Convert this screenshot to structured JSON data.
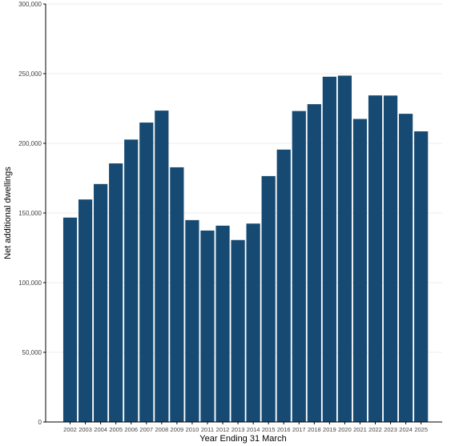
{
  "chart_data": {
    "type": "bar",
    "title": "",
    "xlabel": "Year Ending 31 March",
    "ylabel": "Net additional dwellings",
    "ylim": [
      0,
      300000
    ],
    "yticks": [
      0,
      50000,
      100000,
      150000,
      200000,
      250000,
      300000
    ],
    "ytick_labels": [
      "0",
      "50,000",
      "100,000",
      "150,000",
      "200,000",
      "250,000",
      "300,000"
    ],
    "grid": "horizontal",
    "bar_color": "#174a72",
    "categories": [
      "2002",
      "2003",
      "2004",
      "2005",
      "2006",
      "2007",
      "2008",
      "2009",
      "2010",
      "2011",
      "2012",
      "2013",
      "2014",
      "2015",
      "2016",
      "2017",
      "2018",
      "2019",
      "2020",
      "2021",
      "2022",
      "2023",
      "2024",
      "2025"
    ],
    "values": [
      146700,
      159700,
      170800,
      185600,
      202700,
      214900,
      223500,
      182800,
      144900,
      137400,
      140900,
      130600,
      142400,
      176500,
      195500,
      223200,
      228100,
      247800,
      248600,
      217500,
      234400,
      234300,
      221200,
      208600
    ]
  }
}
